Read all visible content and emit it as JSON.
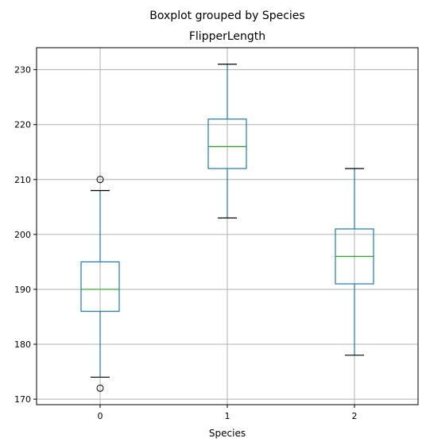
{
  "chart_data": {
    "type": "boxplot",
    "suptitle": "Boxplot grouped by Species",
    "title": "FlipperLength",
    "xlabel": "Species",
    "ylabel": "",
    "categories": [
      "0",
      "1",
      "2"
    ],
    "ylim": [
      169,
      234
    ],
    "yticks": [
      170,
      180,
      190,
      200,
      210,
      220,
      230
    ],
    "grid": true,
    "box_color": "#1f77b4",
    "median_color": "#2ca02c",
    "whisker_cap_color": "#000000",
    "grid_color": "#b0b0b0",
    "boxes": [
      {
        "category": "0",
        "whisker_low": 174,
        "q1": 186,
        "median": 190,
        "q3": 195,
        "whisker_high": 208,
        "outliers": [
          172,
          210
        ]
      },
      {
        "category": "1",
        "whisker_low": 203,
        "q1": 212,
        "median": 216,
        "q3": 221,
        "whisker_high": 231,
        "outliers": []
      },
      {
        "category": "2",
        "whisker_low": 178,
        "q1": 191,
        "median": 196,
        "q3": 201,
        "whisker_high": 212,
        "outliers": []
      }
    ]
  }
}
